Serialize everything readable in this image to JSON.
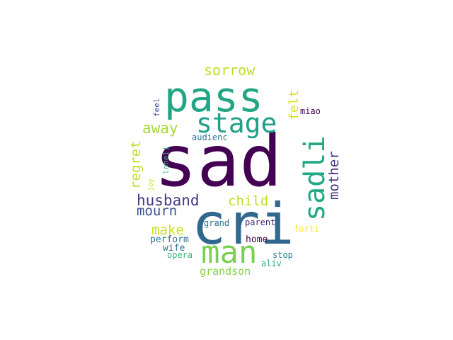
{
  "words": [
    {
      "text": "sad",
      "color": "#440154"
    },
    {
      "text": "cri",
      "color": "#31688e"
    },
    {
      "text": "pass",
      "color": "#21a585"
    },
    {
      "text": "stage",
      "color": "#1fa088"
    },
    {
      "text": "sadli",
      "color": "#22a884"
    },
    {
      "text": "man",
      "color": "#7ad151"
    },
    {
      "text": "sorrow",
      "color": "#bddf26"
    },
    {
      "text": "husband",
      "color": "#443983"
    },
    {
      "text": "mourn",
      "color": "#3b528b"
    },
    {
      "text": "mother",
      "color": "#46327e"
    },
    {
      "text": "regret",
      "color": "#c2df23"
    },
    {
      "text": "away",
      "color": "#a5db36"
    },
    {
      "text": "child",
      "color": "#c2df23"
    },
    {
      "text": "felt",
      "color": "#d8e219"
    },
    {
      "text": "make",
      "color": "#cae11f"
    },
    {
      "text": "grandson",
      "color": "#86d549"
    },
    {
      "text": "audienc",
      "color": "#2a788e"
    },
    {
      "text": "miao",
      "color": "#440154"
    },
    {
      "text": "feel",
      "color": "#3e4989"
    },
    {
      "text": "loneli",
      "color": "#35b779"
    },
    {
      "text": "joy",
      "color": "#c8e020"
    },
    {
      "text": "perform",
      "color": "#2c728e"
    },
    {
      "text": "wife",
      "color": "#2c728e"
    },
    {
      "text": "opera",
      "color": "#35b779"
    },
    {
      "text": "grand",
      "color": "#2c728e"
    },
    {
      "text": "parent",
      "color": "#482475"
    },
    {
      "text": "home",
      "color": "#440154"
    },
    {
      "text": "stop",
      "color": "#26828e"
    },
    {
      "text": "aliv",
      "color": "#2ab07f"
    },
    {
      "text": "forti",
      "color": "#fde725"
    }
  ]
}
